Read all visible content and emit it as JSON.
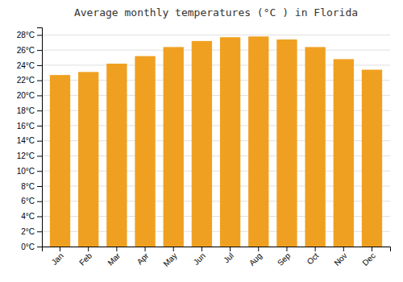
{
  "chart_data": {
    "type": "bar",
    "title": "Average monthly temperatures (°C ) in Florida",
    "categories": [
      "Jan",
      "Feb",
      "Mar",
      "Apr",
      "May",
      "Jun",
      "Jul",
      "Aug",
      "Sep",
      "Oct",
      "Nov",
      "Dec"
    ],
    "values": [
      22.7,
      23.1,
      24.2,
      25.2,
      26.4,
      27.2,
      27.7,
      27.8,
      27.4,
      26.4,
      24.8,
      23.4
    ],
    "color": "#F0A020",
    "ylim": [
      0,
      29
    ],
    "yticks": [
      {
        "value": 0,
        "label": "0°C"
      },
      {
        "value": 2,
        "label": "2°C"
      },
      {
        "value": 4,
        "label": "4°C"
      },
      {
        "value": 6,
        "label": "6°C"
      },
      {
        "value": 8,
        "label": "8°C"
      },
      {
        "value": 10,
        "label": "10°C"
      },
      {
        "value": 12,
        "label": "12°C"
      },
      {
        "value": 14,
        "label": "14°C"
      },
      {
        "value": 16,
        "label": "16°C"
      },
      {
        "value": 18,
        "label": "18°C"
      },
      {
        "value": 20,
        "label": "20°C"
      },
      {
        "value": 22,
        "label": "22°C"
      },
      {
        "value": 24,
        "label": "24°C"
      },
      {
        "value": 26,
        "label": "26°C"
      },
      {
        "value": 28,
        "label": "28°C"
      }
    ],
    "grid": true
  }
}
